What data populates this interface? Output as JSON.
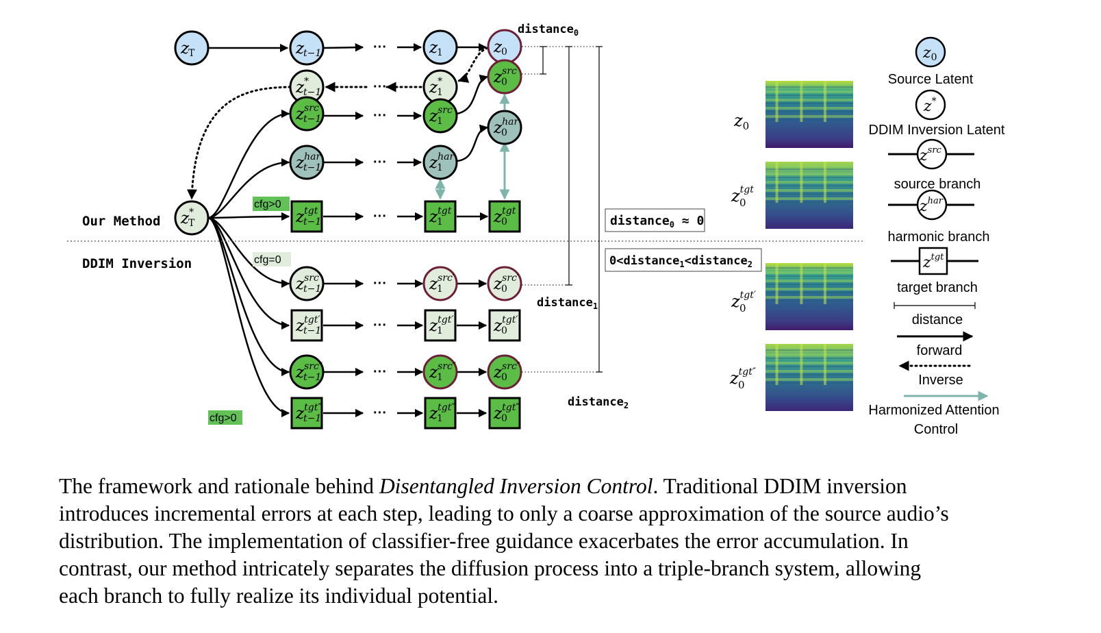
{
  "rows": {
    "our_method": "Our Method",
    "ddim_inversion": "DDIM Inversion"
  },
  "cfg": {
    "pos_top": "cfg>0",
    "zero": "cfg=0",
    "pos_bottom": "cfg>0"
  },
  "ellipsis": "···",
  "nodes": {
    "base": "z",
    "t_sub": "T",
    "t1_sub": "t−1",
    "one_sub": "1",
    "zero_sub": "0",
    "star": "*",
    "src": "src",
    "har": "har",
    "tgt": "tgt",
    "src_p": "src′",
    "tgt_p": "tgt′",
    "src_pp": "src″",
    "tgt_pp": "tgt″"
  },
  "distances": {
    "d0_label": "distance",
    "d0_sub": "0",
    "d1_label": "distance",
    "d1_sub": "1",
    "d2_label": "distance",
    "d2_sub": "2",
    "box1_text": "distance",
    "box1_sub": "0",
    "box1_rel": " ≈ 0",
    "box2_pre": "0<distance",
    "box2_sub1": "1",
    "box2_mid": "<distance",
    "box2_sub2": "2"
  },
  "legend": {
    "source_latent": "Source Latent",
    "ddim_latent": "DDIM Inversion Latent",
    "source_branch": "source branch",
    "harmonic_branch": "harmonic branch",
    "target_branch": "target branch",
    "distance": "distance",
    "forward": "forward",
    "inverse": "Inverse",
    "harmonized_1": "Harmonized Attention",
    "harmonized_2": "Control"
  },
  "colors": {
    "blue_fill": "#c4e1f8",
    "green_fill": "#5bbd45",
    "light_fill": "#e1ecdc",
    "teal_fill": "#9fc1bc",
    "cfg_bg": "#62c258",
    "teal_arrow": "#7fb4aa",
    "maroon": "#6d1f36"
  },
  "caption": {
    "line1_a": "The framework and rationale behind ",
    "line1_em": "Disentangled Inversion Control",
    "line1_b": ". Traditional DDIM inversion",
    "line2": "introduces incremental errors at each step, leading to only a coarse approximation of the source audio’s",
    "line3": "distribution. The implementation of classifier-free guidance exacerbates the error accumulation. In",
    "line4": "contrast, our method intricately separates the diffusion process into a triple-branch system, allowing",
    "line5": "each branch to fully realize its individual potential."
  }
}
